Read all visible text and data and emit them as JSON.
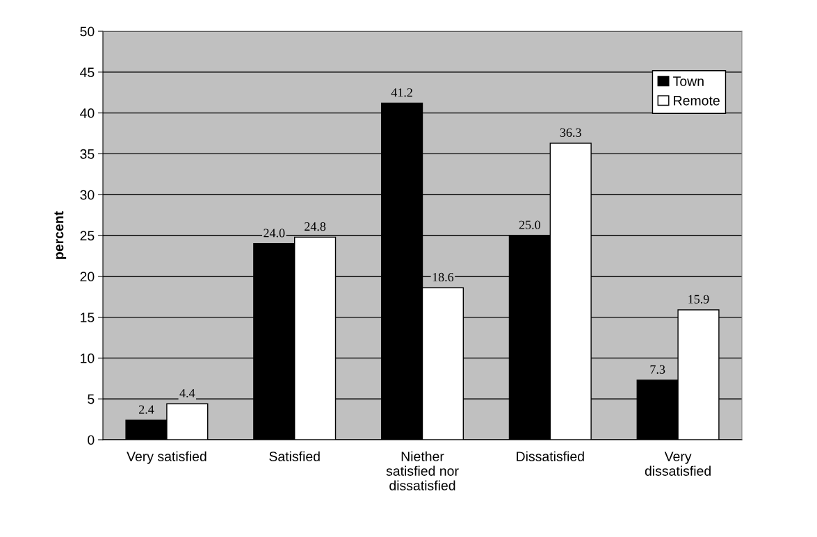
{
  "chart_data": {
    "type": "bar",
    "ylabel": "percent",
    "categories": [
      "Very satisfied",
      "Satisfied",
      "Niether\nsatisfied nor\ndissatisfied",
      "Dissatisfied",
      "Very\ndissatisfied"
    ],
    "series": [
      {
        "name": "Town",
        "color": "#000000",
        "values": [
          2.4,
          24.0,
          41.2,
          25.0,
          7.3
        ]
      },
      {
        "name": "Remote",
        "color": "#ffffff",
        "values": [
          4.4,
          24.8,
          18.6,
          36.3,
          15.9
        ]
      }
    ],
    "value_labels": [
      [
        "2.4",
        "24.0",
        "41.2",
        "25.0",
        "7.3"
      ],
      [
        "4.4",
        "24.8",
        "18.6",
        "36.3",
        "15.9"
      ]
    ],
    "ylim": [
      0,
      50
    ],
    "yticks": [
      0,
      5,
      10,
      15,
      20,
      25,
      30,
      35,
      40,
      45,
      50
    ],
    "grid": "y",
    "legend": "top right"
  }
}
